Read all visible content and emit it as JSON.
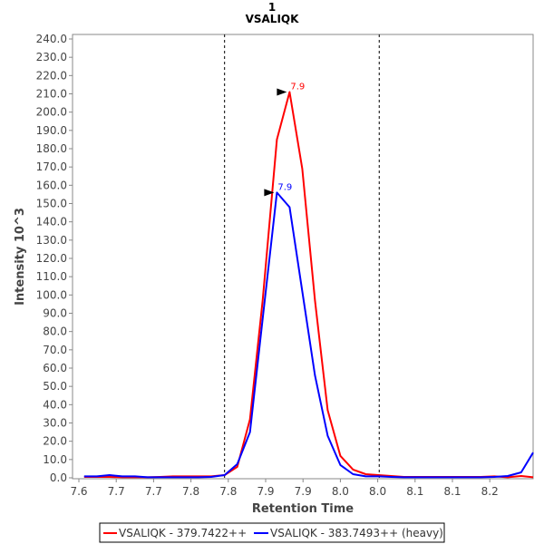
{
  "chart_data": {
    "type": "line",
    "title": "1",
    "subtitle": "VSALIQK",
    "xlabel": "Retention Time",
    "ylabel": "Intensity 10^3",
    "xlim": [
      7.5915,
      8.208
    ],
    "ylim": [
      0,
      240
    ],
    "x_ticks": [
      7.6,
      7.65,
      7.7,
      7.75,
      7.8,
      7.85,
      7.9,
      7.95,
      8.0,
      8.05,
      8.1,
      8.15
    ],
    "x_tick_labels": [
      "7.6",
      "7.7",
      "7.7",
      "7.8",
      "7.8",
      "7.9",
      "7.9",
      "8.0",
      "8.0",
      "8.1",
      "8.1",
      "8.2"
    ],
    "y_ticks": [
      0,
      10,
      20,
      30,
      40,
      50,
      60,
      70,
      80,
      90,
      100,
      110,
      120,
      130,
      140,
      150,
      160,
      170,
      180,
      190,
      200,
      210,
      220,
      230,
      240
    ],
    "y_tick_labels": [
      "0.0",
      "10.0",
      "20.0",
      "30.0",
      "40.0",
      "50.0",
      "60.0",
      "70.0",
      "80.0",
      "90.0",
      "100.0",
      "110.0",
      "120.0",
      "130.0",
      "140.0",
      "150.0",
      "160.0",
      "170.0",
      "180.0",
      "190.0",
      "200.0",
      "210.0",
      "220.0",
      "230.0",
      "240.0"
    ],
    "grid": false,
    "legend_position": "bottom",
    "boundaries": [
      7.795,
      8.002
    ],
    "x": [
      7.607,
      7.624,
      7.641,
      7.658,
      7.675,
      7.692,
      7.709,
      7.726,
      7.743,
      7.76,
      7.777,
      7.795,
      7.812,
      7.829,
      7.846,
      7.865,
      7.882,
      7.899,
      7.916,
      7.933,
      7.95,
      7.967,
      7.984,
      8.001,
      8.018,
      8.035,
      8.052,
      8.069,
      8.085,
      8.102,
      8.119,
      8.138,
      8.156,
      8.174,
      8.192,
      8.208
    ],
    "series": [
      {
        "name": "VSALIQK - 379.7422++",
        "color": "#ff0000",
        "values": [
          0.5,
          0.5,
          0.5,
          0.3,
          0.3,
          0.3,
          0.5,
          0.8,
          0.8,
          0.8,
          0.8,
          1.5,
          6,
          32,
          97,
          185,
          211,
          169,
          97,
          37,
          12,
          4.5,
          2,
          1.5,
          1,
          0.5,
          0.5,
          0.5,
          0.5,
          0.5,
          0.5,
          0.5,
          0.8,
          0.3,
          1,
          0.3
        ],
        "peak": {
          "x": 7.882,
          "y": 211,
          "label": "7.9"
        }
      },
      {
        "name": "VSALIQK - 383.7493++ (heavy)",
        "color": "#0000ff",
        "values": [
          0.8,
          0.8,
          1.5,
          0.8,
          0.8,
          0.3,
          0.3,
          0.3,
          0.3,
          0.3,
          0.5,
          1.5,
          7.5,
          25,
          87,
          156,
          148,
          102,
          56,
          23,
          7,
          2,
          0.8,
          0.8,
          0.5,
          0.3,
          0.3,
          0.3,
          0.3,
          0.3,
          0.3,
          0.3,
          0.5,
          1,
          3,
          13.8
        ],
        "peak": {
          "x": 7.865,
          "y": 156,
          "label": "7.9"
        }
      }
    ]
  }
}
